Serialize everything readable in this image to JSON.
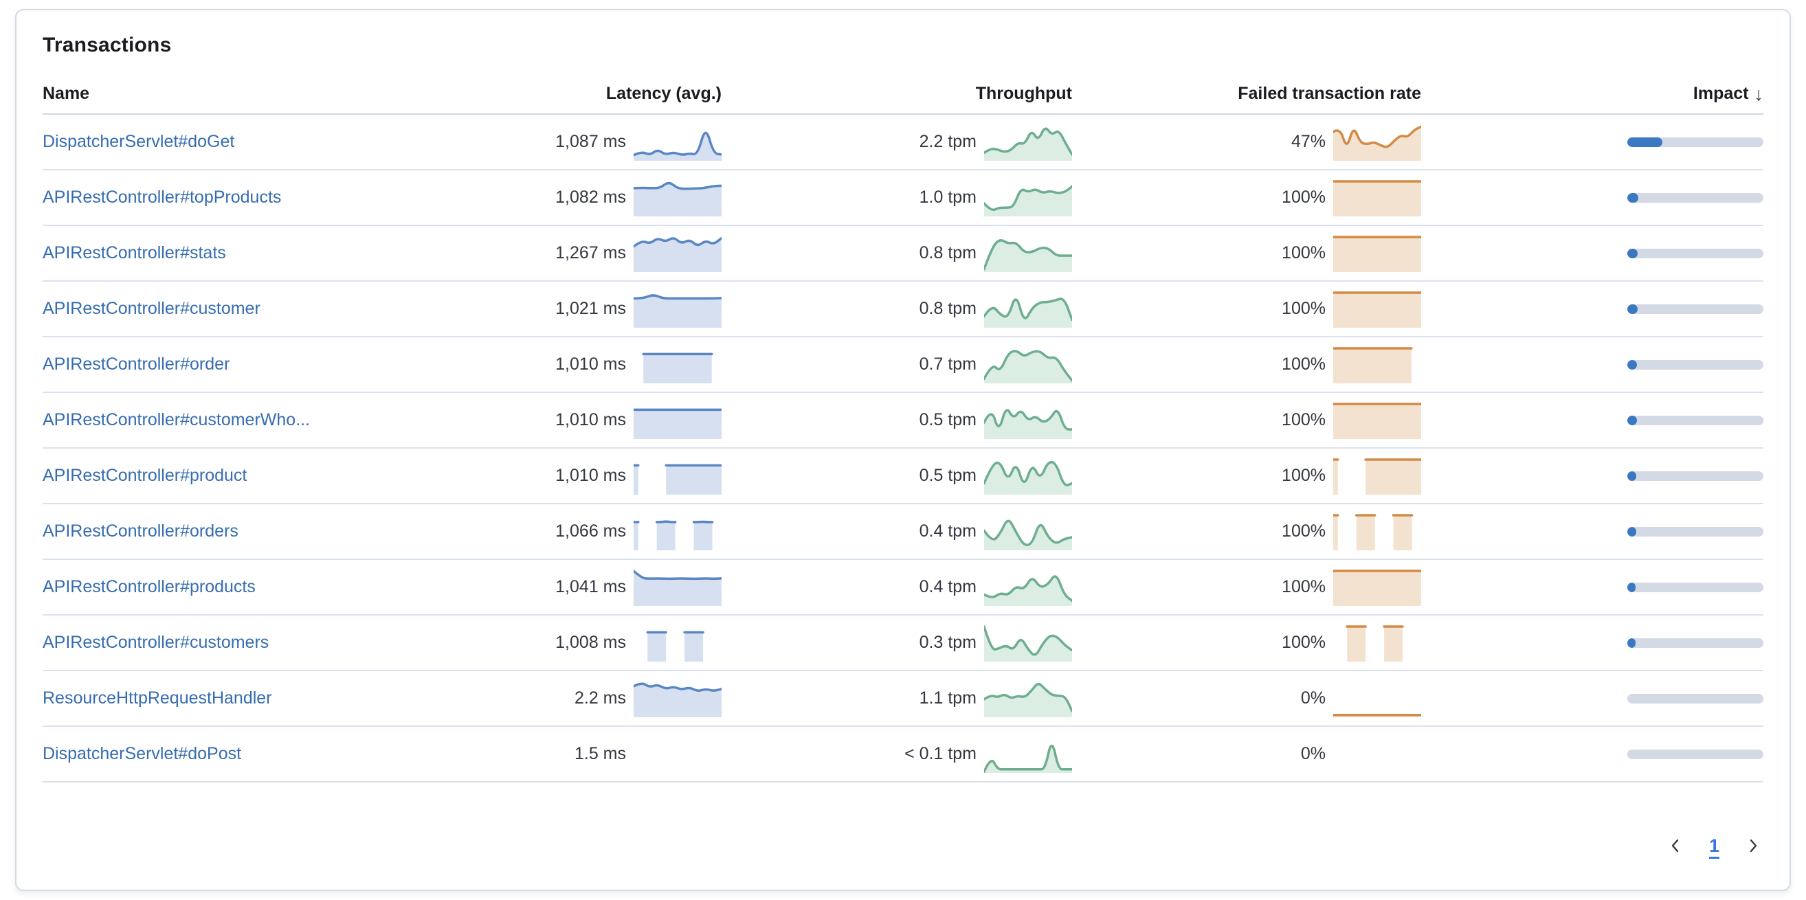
{
  "card": {
    "title": "Transactions"
  },
  "icons": {
    "sort_desc": "↓",
    "prev": "chevron-left",
    "next": "chevron-right"
  },
  "colors": {
    "heading": "#1A1C21",
    "text": "#343741",
    "link": "#366CB0",
    "card_border": "#D3DAE6",
    "divider": "#DCE2ED",
    "header_divider": "#CFD7E2",
    "latency_stroke": "#5A87C4",
    "latency_fill": "#D6E0F0",
    "throughput_stroke": "#6DAE8F",
    "throughput_fill": "#DCEDE4",
    "failed_stroke": "#D28A45",
    "failed_fill": "#F3E2CF",
    "impact_fill": "#3B78C2",
    "impact_track": "#D3DAE6",
    "page_active": "#3677E5"
  },
  "table": {
    "columns": [
      {
        "label": "Name"
      },
      {
        "label": "Latency (avg.)"
      },
      {
        "label": "Throughput"
      },
      {
        "label": "Failed transaction rate"
      },
      {
        "label": "Impact",
        "sort": "desc"
      }
    ],
    "rows": [
      {
        "name": "DispatcherServlet#doGet",
        "latency": "1,087 ms",
        "latency_spark": [
          0.13,
          0.24,
          0.13,
          0.3,
          0.14,
          0.22,
          0.13,
          0.18,
          0.14,
          1.0,
          0.18,
          0.15
        ],
        "throughput": "2.2 tpm",
        "throughput_spark": [
          0.2,
          0.33,
          0.3,
          0.22,
          0.28,
          0.5,
          0.45,
          0.88,
          0.55,
          1.0,
          0.72,
          0.88,
          0.5,
          0.15
        ],
        "failed_rate": "47%",
        "failed_spark": [
          0.82,
          0.95,
          0.3,
          1.0,
          0.5,
          0.45,
          0.52,
          0.42,
          0.35,
          0.55,
          0.72,
          0.66,
          0.88,
          0.97
        ],
        "impact_pct": 26
      },
      {
        "name": "APIRestController#topProducts",
        "latency": "1,082 ms",
        "latency_spark": [
          0.8,
          0.81,
          0.8,
          0.8,
          1.0,
          0.79,
          0.78,
          0.79,
          0.8,
          0.86,
          0.87
        ],
        "throughput": "1.0 tpm",
        "throughput_spark": [
          0.35,
          0.12,
          0.22,
          0.22,
          0.24,
          0.8,
          0.68,
          0.78,
          0.65,
          0.72,
          0.65,
          0.68,
          0.85
        ],
        "failed_rate": "100%",
        "failed_spark": [
          1,
          1,
          1,
          1,
          1,
          1,
          1,
          1,
          1,
          1
        ],
        "impact_pct": 8
      },
      {
        "name": "APIRestController#stats",
        "latency": "1,267 ms",
        "latency_spark": [
          0.72,
          0.9,
          0.8,
          0.97,
          0.86,
          1.0,
          0.8,
          0.93,
          0.72,
          0.9,
          0.78,
          0.97
        ],
        "throughput": "0.8 tpm",
        "throughput_spark": [
          0.05,
          0.7,
          0.95,
          0.8,
          0.85,
          0.55,
          0.55,
          0.68,
          0.68,
          0.45,
          0.45,
          0.45
        ],
        "failed_rate": "100%",
        "failed_spark": [
          1,
          1,
          1,
          1,
          1,
          1,
          1,
          1,
          1,
          1
        ],
        "impact_pct": 7.5
      },
      {
        "name": "APIRestController#customer",
        "latency": "1,021 ms",
        "latency_spark": [
          0.83,
          0.83,
          0.95,
          0.83,
          0.83,
          0.83,
          0.83,
          0.83,
          0.83,
          0.84
        ],
        "throughput": "0.8 tpm",
        "throughput_spark": [
          0.3,
          0.65,
          0.35,
          0.25,
          1.0,
          0.1,
          0.55,
          0.72,
          0.72,
          0.78,
          0.85,
          0.2
        ],
        "failed_rate": "100%",
        "failed_spark": [
          1,
          1,
          1,
          1,
          1,
          1,
          1,
          1,
          1,
          1
        ],
        "impact_pct": 7.5
      },
      {
        "name": "APIRestController#order",
        "latency": "1,010 ms",
        "latency_spark": [
          null,
          0.83,
          0.83,
          0.83,
          0.83,
          0.83,
          0.83,
          0.83,
          0.83,
          null
        ],
        "throughput": "0.7 tpm",
        "throughput_spark": [
          0.1,
          0.55,
          0.3,
          0.85,
          0.95,
          0.75,
          0.9,
          0.92,
          0.7,
          0.75,
          0.35,
          0.05
        ],
        "failed_rate": "100%",
        "failed_spark": [
          1,
          1,
          1,
          1,
          1,
          1,
          1,
          1,
          1,
          null
        ],
        "impact_pct": 7
      },
      {
        "name": "APIRestController#customerWho...",
        "latency": "1,010 ms",
        "latency_spark": [
          0.83,
          0.83,
          0.83,
          0.83,
          0.83,
          0.83,
          0.83,
          0.83,
          0.83,
          0.83
        ],
        "throughput": "0.5 tpm",
        "throughput_spark": [
          0.45,
          0.9,
          0.15,
          0.95,
          0.55,
          0.85,
          0.5,
          0.65,
          0.45,
          0.55,
          0.9,
          0.25,
          0.25
        ],
        "failed_rate": "100%",
        "failed_spark": [
          1,
          1,
          1,
          1,
          1,
          1,
          1,
          1,
          1,
          1
        ],
        "impact_pct": 7
      },
      {
        "name": "APIRestController#product",
        "latency": "1,010 ms",
        "latency_spark": [
          0.83,
          0.83,
          null,
          null,
          null,
          null,
          null,
          0.83,
          0.83,
          0.83,
          0.83,
          0.83,
          0.83,
          0.83,
          0.83,
          0.83,
          0.83,
          0.83,
          0.83,
          0.83
        ],
        "throughput": "0.5 tpm",
        "throughput_spark": [
          0.3,
          0.85,
          0.95,
          0.35,
          0.95,
          0.15,
          0.9,
          0.4,
          0.95,
          0.9,
          0.2,
          0.3
        ],
        "failed_rate": "100%",
        "failed_spark": [
          1,
          1,
          null,
          null,
          null,
          null,
          null,
          1,
          1,
          1,
          1,
          1,
          1,
          1,
          1,
          1,
          1,
          1,
          1,
          1
        ],
        "impact_pct": 6.5
      },
      {
        "name": "APIRestController#orders",
        "latency": "1,066 ms",
        "latency_spark": [
          0.8,
          0.8,
          null,
          null,
          null,
          0.8,
          0.8,
          0.82,
          0.8,
          0.8,
          null,
          null,
          null,
          0.8,
          0.8,
          0.81,
          0.8,
          0.8,
          null,
          null
        ],
        "throughput": "0.4 tpm",
        "throughput_spark": [
          0.55,
          0.2,
          0.45,
          0.95,
          0.5,
          0.1,
          0.15,
          0.85,
          0.35,
          0.15,
          0.3,
          0.35
        ],
        "failed_rate": "100%",
        "failed_spark": [
          1,
          1,
          null,
          null,
          null,
          1,
          1,
          1,
          1,
          1,
          null,
          null,
          null,
          1,
          1,
          1,
          1,
          1,
          null,
          null
        ],
        "impact_pct": 6.5
      },
      {
        "name": "APIRestController#products",
        "latency": "1,041 ms",
        "latency_spark": [
          1.0,
          0.79,
          0.77,
          0.78,
          0.77,
          0.77,
          0.78,
          0.77,
          0.77,
          0.78,
          0.77,
          0.78
        ],
        "throughput": "0.4 tpm",
        "throughput_spark": [
          0.3,
          0.18,
          0.35,
          0.28,
          0.55,
          0.45,
          0.85,
          0.5,
          0.6,
          0.95,
          0.3,
          0.12
        ],
        "failed_rate": "100%",
        "failed_spark": [
          1,
          1,
          1,
          1,
          1,
          1,
          1,
          1,
          1,
          1
        ],
        "impact_pct": 6
      },
      {
        "name": "APIRestController#customers",
        "latency": "1,008 ms",
        "latency_spark": [
          null,
          null,
          null,
          0.83,
          0.83,
          0.83,
          0.83,
          0.83,
          null,
          null,
          null,
          0.83,
          0.83,
          0.83,
          0.83,
          0.83,
          null,
          null,
          null,
          null
        ],
        "throughput": "0.3 tpm",
        "throughput_spark": [
          1.0,
          0.3,
          0.35,
          0.45,
          0.3,
          0.7,
          0.32,
          0.1,
          0.5,
          0.75,
          0.7,
          0.45,
          0.3
        ],
        "failed_rate": "100%",
        "failed_spark": [
          null,
          null,
          null,
          1,
          1,
          1,
          1,
          1,
          null,
          null,
          null,
          1,
          1,
          1,
          1,
          1,
          null,
          null,
          null,
          null
        ],
        "impact_pct": 6
      },
      {
        "name": "ResourceHttpRequestHandler",
        "latency": "2.2 ms",
        "latency_spark": [
          0.88,
          1.0,
          0.85,
          0.93,
          0.8,
          0.87,
          0.78,
          0.85,
          0.73,
          0.8,
          0.74,
          0.8
        ],
        "throughput": "1.1 tpm",
        "throughput_spark": [
          0.5,
          0.62,
          0.55,
          0.65,
          0.52,
          0.6,
          0.55,
          0.75,
          1.0,
          0.8,
          0.62,
          0.6,
          0.58,
          0.15
        ],
        "failed_rate": "0%",
        "failed_spark": [
          0.03,
          0.03,
          0.03,
          0.03,
          0.03,
          0.03,
          0.03,
          0.03,
          0.03,
          0.03
        ],
        "impact_pct": 0
      },
      {
        "name": "DispatcherServlet#doPost",
        "latency": "1.5 ms",
        "latency_spark": [],
        "throughput": "< 0.1 tpm",
        "throughput_spark": [
          0.0,
          0.45,
          0.07,
          0.07,
          0.07,
          0.07,
          0.07,
          0.07,
          0.07,
          0.07,
          1.0,
          0.07,
          0.07,
          0.07
        ],
        "failed_rate": "0%",
        "failed_spark": [],
        "impact_pct": 0
      }
    ]
  },
  "pagination": {
    "current_page": "1"
  }
}
